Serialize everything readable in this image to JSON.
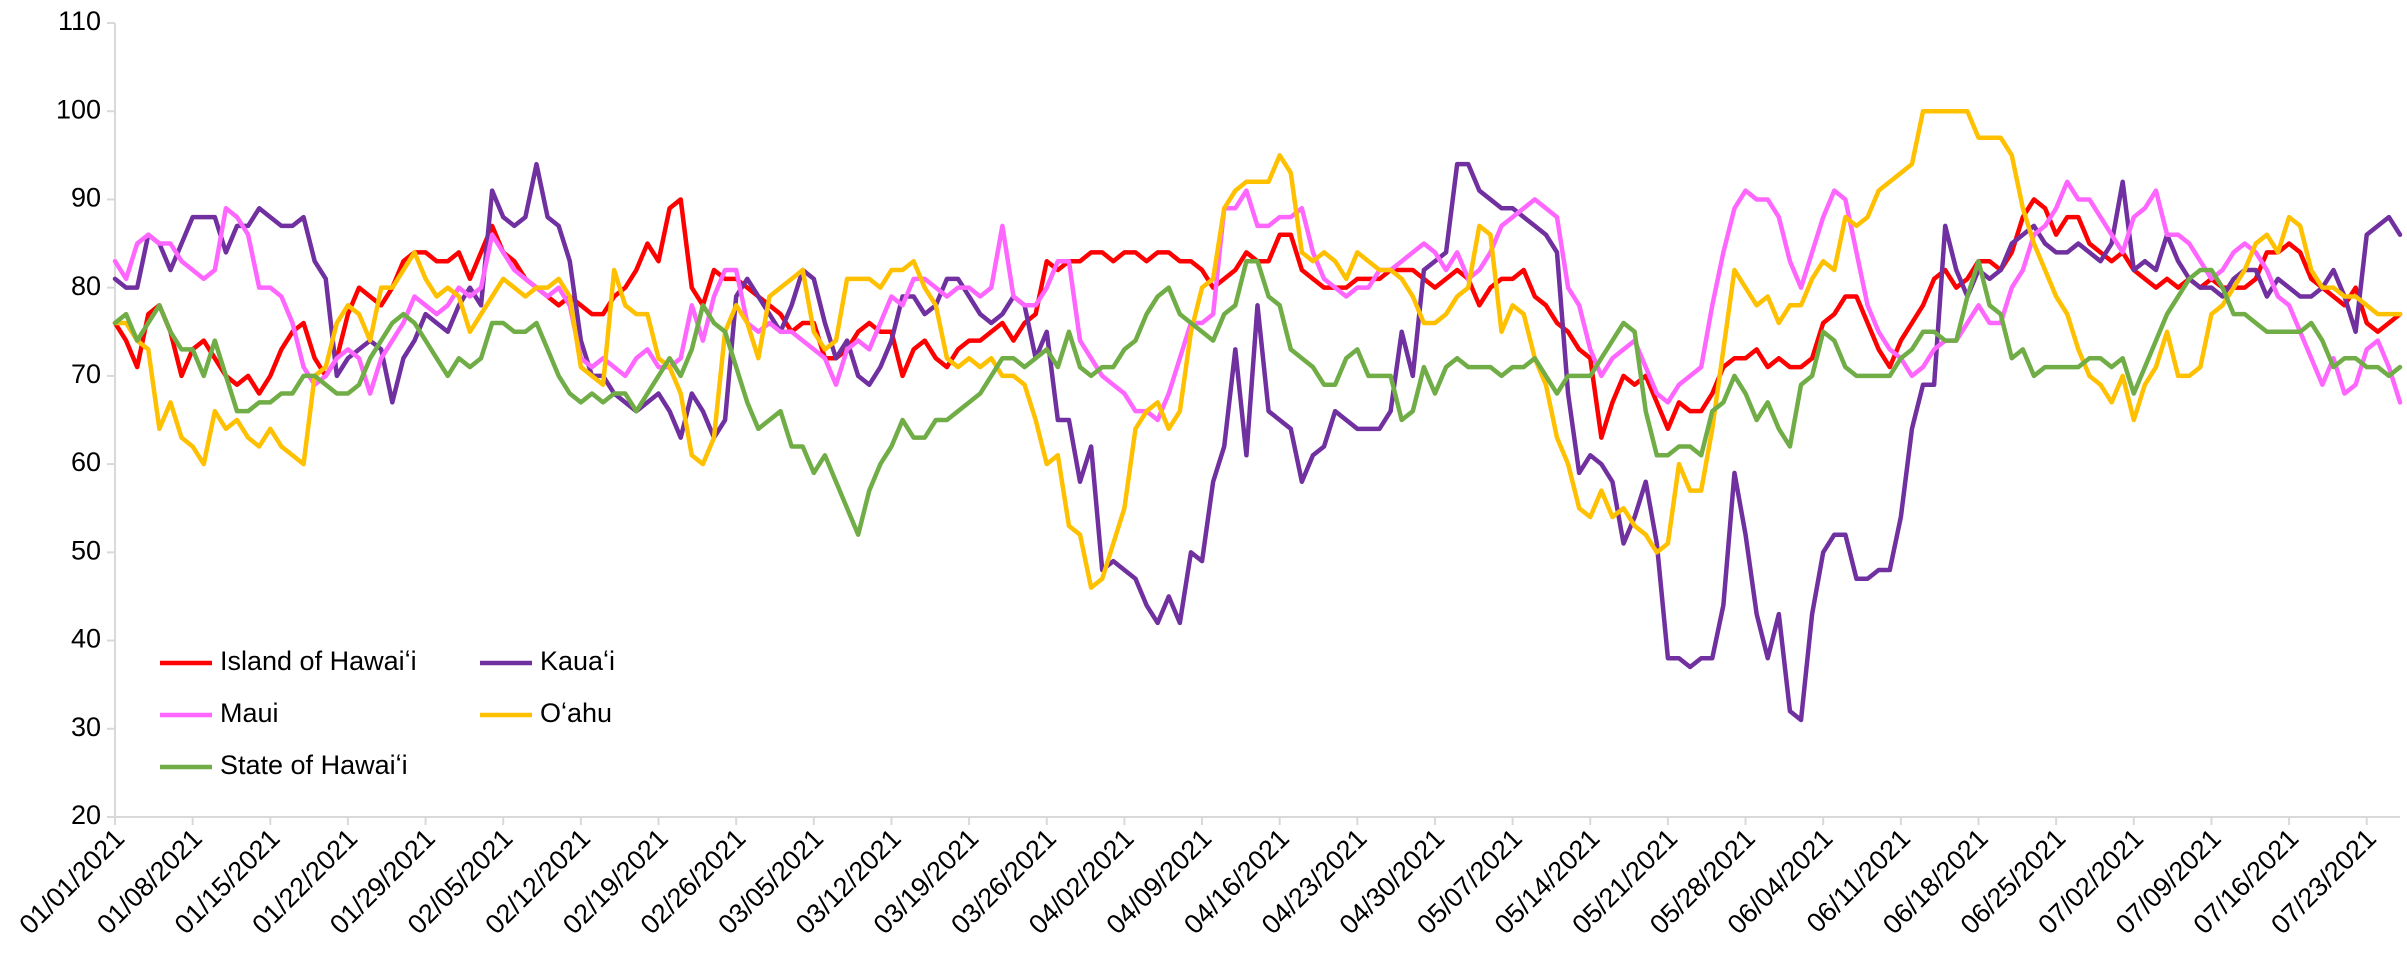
{
  "chart_data": {
    "type": "line",
    "legend_position": "lower left",
    "grid": false,
    "ylim": [
      20,
      110
    ],
    "yticks": [
      20,
      30,
      40,
      50,
      60,
      70,
      80,
      90,
      100,
      110
    ],
    "categories": [
      "01/01/2021",
      null,
      null,
      null,
      null,
      null,
      null,
      "01/08/2021",
      null,
      null,
      null,
      null,
      null,
      null,
      "01/15/2021",
      null,
      null,
      null,
      null,
      null,
      null,
      "01/22/2021",
      null,
      null,
      null,
      null,
      null,
      null,
      "01/29/2021",
      null,
      null,
      null,
      null,
      null,
      null,
      "02/05/2021",
      null,
      null,
      null,
      null,
      null,
      null,
      "02/12/2021",
      null,
      null,
      null,
      null,
      null,
      null,
      "02/19/2021",
      null,
      null,
      null,
      null,
      null,
      null,
      "02/26/2021",
      null,
      null,
      null,
      null,
      null,
      null,
      "03/05/2021",
      null,
      null,
      null,
      null,
      null,
      null,
      "03/12/2021",
      null,
      null,
      null,
      null,
      null,
      null,
      "03/19/2021",
      null,
      null,
      null,
      null,
      null,
      null,
      "03/26/2021",
      null,
      null,
      null,
      null,
      null,
      null,
      "04/02/2021",
      null,
      null,
      null,
      null,
      null,
      null,
      "04/09/2021",
      null,
      null,
      null,
      null,
      null,
      null,
      "04/16/2021",
      null,
      null,
      null,
      null,
      null,
      null,
      "04/23/2021",
      null,
      null,
      null,
      null,
      null,
      null,
      "04/30/2021",
      null,
      null,
      null,
      null,
      null,
      null,
      "05/07/2021",
      null,
      null,
      null,
      null,
      null,
      null,
      "05/14/2021",
      null,
      null,
      null,
      null,
      null,
      null,
      "05/21/2021",
      null,
      null,
      null,
      null,
      null,
      null,
      "05/28/2021",
      null,
      null,
      null,
      null,
      null,
      null,
      "06/04/2021",
      null,
      null,
      null,
      null,
      null,
      null,
      "06/11/2021",
      null,
      null,
      null,
      null,
      null,
      null,
      "06/18/2021",
      null,
      null,
      null,
      null,
      null,
      null,
      "06/25/2021",
      null,
      null,
      null,
      null,
      null,
      null,
      "07/02/2021",
      null,
      null,
      null,
      null,
      null,
      null,
      "07/09/2021",
      null,
      null,
      null,
      null,
      null,
      null,
      "07/16/2021",
      null,
      null,
      null,
      null,
      null,
      null,
      "07/23/2021",
      null,
      null,
      null
    ],
    "series": [
      {
        "name": "Island of Hawaiʻi",
        "color": "#ff0000",
        "values": [
          76,
          74,
          71,
          77,
          78,
          75,
          70,
          73,
          74,
          72,
          70,
          69,
          70,
          68,
          70,
          73,
          75,
          76,
          72,
          70,
          72,
          77,
          80,
          79,
          78,
          80,
          83,
          84,
          84,
          83,
          83,
          84,
          81,
          84,
          87,
          84,
          83,
          81,
          80,
          79,
          78,
          79,
          78,
          77,
          77,
          79,
          80,
          82,
          85,
          83,
          89,
          90,
          80,
          78,
          82,
          81,
          81,
          80,
          79,
          78,
          77,
          75,
          76,
          76,
          72,
          72,
          73,
          75,
          76,
          75,
          75,
          70,
          73,
          74,
          72,
          71,
          73,
          74,
          74,
          75,
          76,
          74,
          76,
          77,
          83,
          82,
          83,
          83,
          84,
          84,
          83,
          84,
          84,
          83,
          84,
          84,
          83,
          83,
          82,
          80,
          81,
          82,
          84,
          83,
          83,
          86,
          86,
          82,
          81,
          80,
          80,
          80,
          81,
          81,
          81,
          82,
          82,
          82,
          81,
          80,
          81,
          82,
          81,
          78,
          80,
          81,
          81,
          82,
          79,
          78,
          76,
          75,
          73,
          72,
          63,
          67,
          70,
          69,
          70,
          67,
          64,
          67,
          66,
          66,
          68,
          71,
          72,
          72,
          73,
          71,
          72,
          71,
          71,
          72,
          76,
          77,
          79,
          79,
          76,
          73,
          71,
          74,
          76,
          78,
          81,
          82,
          80,
          81,
          83,
          83,
          82,
          84,
          88,
          90,
          89,
          86,
          88,
          88,
          85,
          84,
          83,
          84,
          82,
          81,
          80,
          81,
          80,
          81,
          80,
          81,
          80,
          80,
          80,
          81,
          84,
          84,
          85,
          84,
          81,
          80,
          79,
          78,
          80,
          76,
          75,
          76,
          77
        ]
      },
      {
        "name": "Kauaʻi",
        "color": "#7030a0",
        "values": [
          81,
          80,
          80,
          86,
          85,
          82,
          85,
          88,
          88,
          88,
          84,
          87,
          87,
          89,
          88,
          87,
          87,
          88,
          83,
          81,
          70,
          72,
          73,
          74,
          73,
          67,
          72,
          74,
          77,
          76,
          75,
          78,
          80,
          78,
          91,
          88,
          87,
          88,
          94,
          88,
          87,
          83,
          74,
          70,
          70,
          68,
          67,
          66,
          67,
          68,
          66,
          63,
          68,
          66,
          63,
          65,
          79,
          81,
          79,
          77,
          75,
          78,
          82,
          81,
          76,
          72,
          74,
          70,
          69,
          71,
          74,
          79,
          79,
          77,
          78,
          81,
          81,
          79,
          77,
          76,
          77,
          79,
          78,
          72,
          75,
          65,
          65,
          58,
          62,
          48,
          49,
          48,
          47,
          44,
          42,
          45,
          42,
          50,
          49,
          58,
          62,
          73,
          61,
          78,
          66,
          65,
          64,
          58,
          61,
          62,
          66,
          65,
          64,
          64,
          64,
          66,
          75,
          70,
          82,
          83,
          84,
          94,
          94,
          91,
          90,
          89,
          89,
          88,
          87,
          86,
          84,
          68,
          59,
          61,
          60,
          58,
          51,
          54,
          58,
          51,
          38,
          38,
          37,
          38,
          38,
          44,
          59,
          52,
          43,
          38,
          43,
          32,
          31,
          43,
          50,
          52,
          52,
          47,
          47,
          48,
          48,
          54,
          64,
          69,
          69,
          87,
          82,
          79,
          82,
          81,
          82,
          85,
          86,
          87,
          85,
          84,
          84,
          85,
          84,
          83,
          85,
          92,
          82,
          83,
          82,
          86,
          83,
          81,
          80,
          80,
          79,
          81,
          82,
          82,
          79,
          81,
          80,
          79,
          79,
          80,
          82,
          79,
          75,
          86,
          87,
          88,
          86
        ]
      },
      {
        "name": "Maui",
        "color": "#ff66ff",
        "values": [
          83,
          81,
          85,
          86,
          85,
          85,
          83,
          82,
          81,
          82,
          89,
          88,
          86,
          80,
          80,
          79,
          76,
          71,
          69,
          70,
          72,
          73,
          72,
          68,
          72,
          74,
          76,
          79,
          78,
          77,
          78,
          80,
          79,
          80,
          86,
          84,
          82,
          81,
          80,
          79,
          80,
          78,
          72,
          71,
          72,
          71,
          70,
          72,
          73,
          71,
          71,
          72,
          78,
          74,
          79,
          82,
          82,
          76,
          75,
          76,
          75,
          75,
          74,
          73,
          72,
          69,
          73,
          74,
          73,
          76,
          79,
          78,
          81,
          81,
          80,
          79,
          80,
          80,
          79,
          80,
          87,
          79,
          78,
          78,
          80,
          83,
          83,
          74,
          72,
          70,
          69,
          68,
          66,
          66,
          65,
          68,
          72,
          76,
          76,
          77,
          89,
          89,
          91,
          87,
          87,
          88,
          88,
          89,
          84,
          81,
          80,
          79,
          80,
          80,
          82,
          82,
          83,
          84,
          85,
          84,
          82,
          84,
          81,
          82,
          84,
          87,
          88,
          89,
          90,
          89,
          88,
          80,
          78,
          73,
          70,
          72,
          73,
          74,
          71,
          68,
          67,
          69,
          70,
          71,
          78,
          84,
          89,
          91,
          90,
          90,
          88,
          83,
          80,
          84,
          88,
          91,
          90,
          84,
          78,
          75,
          73,
          72,
          70,
          71,
          73,
          74,
          74,
          76,
          78,
          76,
          76,
          80,
          82,
          86,
          87,
          89,
          92,
          90,
          90,
          88,
          86,
          84,
          88,
          89,
          91,
          86,
          86,
          85,
          83,
          81,
          82,
          84,
          85,
          84,
          82,
          79,
          78,
          75,
          72,
          69,
          72,
          68,
          69,
          73,
          74,
          71,
          67
        ]
      },
      {
        "name": "Oʻahu",
        "color": "#ffc000",
        "values": [
          76,
          76,
          74,
          73,
          64,
          67,
          63,
          62,
          60,
          66,
          64,
          65,
          63,
          62,
          64,
          62,
          61,
          60,
          70,
          71,
          76,
          78,
          77,
          74,
          80,
          80,
          82,
          84,
          81,
          79,
          80,
          79,
          75,
          77,
          79,
          81,
          80,
          79,
          80,
          80,
          81,
          79,
          71,
          70,
          69,
          82,
          78,
          77,
          77,
          72,
          71,
          68,
          61,
          60,
          63,
          75,
          78,
          76,
          72,
          79,
          80,
          81,
          82,
          75,
          73,
          74,
          81,
          81,
          81,
          80,
          82,
          82,
          83,
          80,
          78,
          72,
          71,
          72,
          71,
          72,
          70,
          70,
          69,
          65,
          60,
          61,
          53,
          52,
          46,
          47,
          51,
          55,
          64,
          66,
          67,
          64,
          66,
          75,
          80,
          81,
          89,
          91,
          92,
          92,
          92,
          95,
          93,
          84,
          83,
          84,
          83,
          81,
          84,
          83,
          82,
          82,
          81,
          79,
          76,
          76,
          77,
          79,
          80,
          87,
          86,
          75,
          78,
          77,
          72,
          69,
          63,
          60,
          55,
          54,
          57,
          54,
          55,
          53,
          52,
          50,
          51,
          60,
          57,
          57,
          64,
          73,
          82,
          80,
          78,
          79,
          76,
          78,
          78,
          81,
          83,
          82,
          88,
          87,
          88,
          91,
          92,
          93,
          94,
          100,
          100,
          100,
          100,
          100,
          97,
          97,
          97,
          95,
          89,
          85,
          82,
          79,
          77,
          73,
          70,
          69,
          67,
          70,
          65,
          69,
          71,
          75,
          70,
          70,
          71,
          77,
          78,
          80,
          82,
          85,
          86,
          84,
          88,
          87,
          82,
          80,
          80,
          79,
          79,
          78,
          77,
          77,
          77
        ]
      },
      {
        "name": "State of Hawaiʻi",
        "color": "#70ad47",
        "values": [
          76,
          77,
          74,
          76,
          78,
          75,
          73,
          73,
          70,
          74,
          70,
          66,
          66,
          67,
          67,
          68,
          68,
          70,
          70,
          69,
          68,
          68,
          69,
          72,
          74,
          76,
          77,
          76,
          74,
          72,
          70,
          72,
          71,
          72,
          76,
          76,
          75,
          75,
          76,
          73,
          70,
          68,
          67,
          68,
          67,
          68,
          68,
          66,
          68,
          70,
          72,
          70,
          73,
          78,
          76,
          75,
          71,
          67,
          64,
          65,
          66,
          62,
          62,
          59,
          61,
          58,
          55,
          52,
          57,
          60,
          62,
          65,
          63,
          63,
          65,
          65,
          66,
          67,
          68,
          70,
          72,
          72,
          71,
          72,
          73,
          71,
          75,
          71,
          70,
          71,
          71,
          73,
          74,
          77,
          79,
          80,
          77,
          76,
          75,
          74,
          77,
          78,
          83,
          83,
          79,
          78,
          73,
          72,
          71,
          69,
          69,
          72,
          73,
          70,
          70,
          70,
          65,
          66,
          71,
          68,
          71,
          72,
          71,
          71,
          71,
          70,
          71,
          71,
          72,
          70,
          68,
          70,
          70,
          70,
          72,
          74,
          76,
          75,
          66,
          61,
          61,
          62,
          62,
          61,
          66,
          67,
          70,
          68,
          65,
          67,
          64,
          62,
          69,
          70,
          75,
          74,
          71,
          70,
          70,
          70,
          70,
          72,
          73,
          75,
          75,
          74,
          74,
          79,
          83,
          78,
          77,
          72,
          73,
          70,
          71,
          71,
          71,
          71,
          72,
          72,
          71,
          72,
          68,
          71,
          74,
          77,
          79,
          81,
          82,
          82,
          80,
          77,
          77,
          76,
          75,
          75,
          75,
          75,
          76,
          74,
          71,
          72,
          72,
          71,
          71,
          70,
          71
        ]
      }
    ]
  }
}
